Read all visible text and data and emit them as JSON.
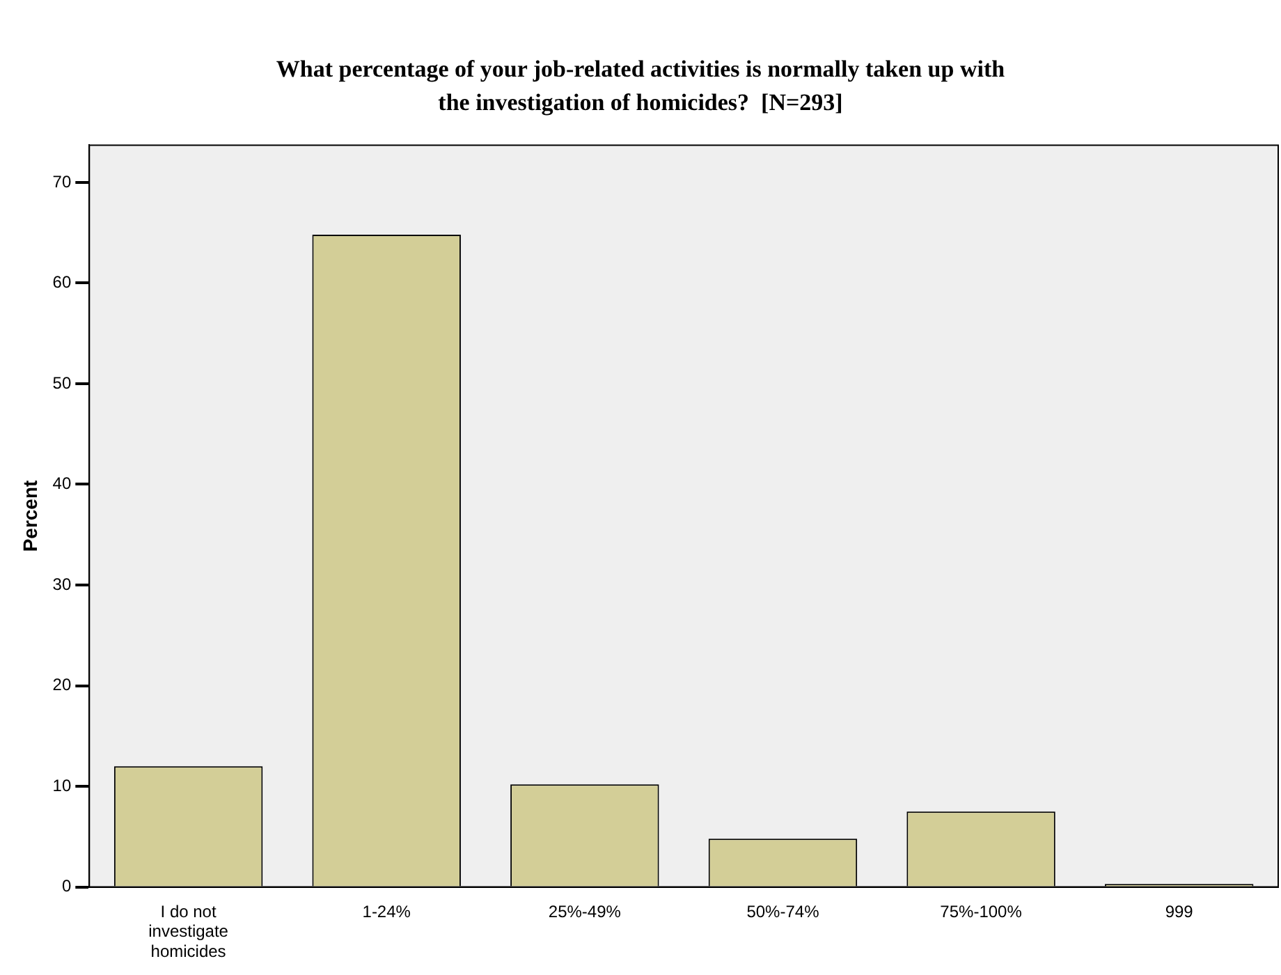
{
  "chart_data": {
    "type": "bar",
    "title": "What percentage of your job-related activities is normally taken up with the investigation of homicides?  [N=293]",
    "ylabel": "Percent",
    "categories": [
      "I do not investigate homicides",
      "1-24%",
      "25%-49%",
      "50%-74%",
      "75%-100%",
      "999"
    ],
    "values": [
      12.0,
      64.8,
      10.2,
      4.8,
      7.5,
      0.3
    ],
    "color": "#d3ce97",
    "ylim": [
      0,
      73.7
    ],
    "yticks": [
      0,
      10,
      20,
      30,
      40,
      50,
      60,
      70
    ],
    "grid": false,
    "legend": false
  }
}
